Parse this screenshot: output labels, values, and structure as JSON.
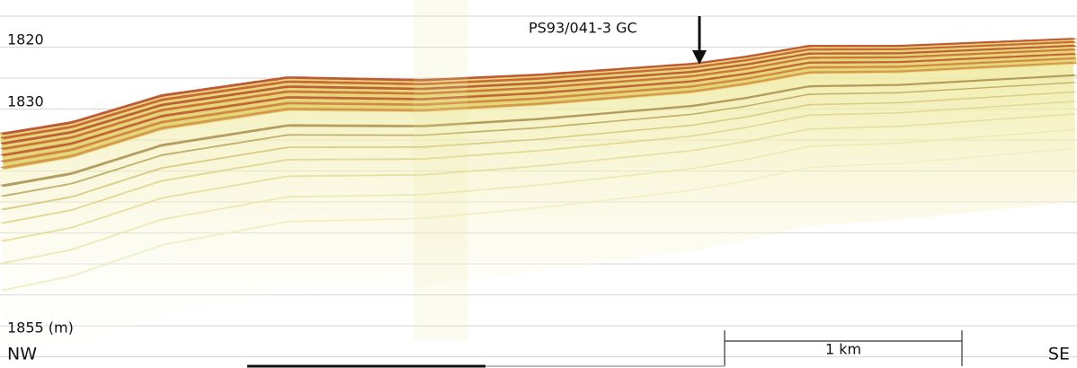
{
  "depth_labels": [
    "1820",
    "1830",
    "1855 (m)"
  ],
  "core_label": "PS93/041-3 GC",
  "directions": {
    "left": "NW",
    "right": "SE"
  },
  "scale_bar": "1 km"
}
